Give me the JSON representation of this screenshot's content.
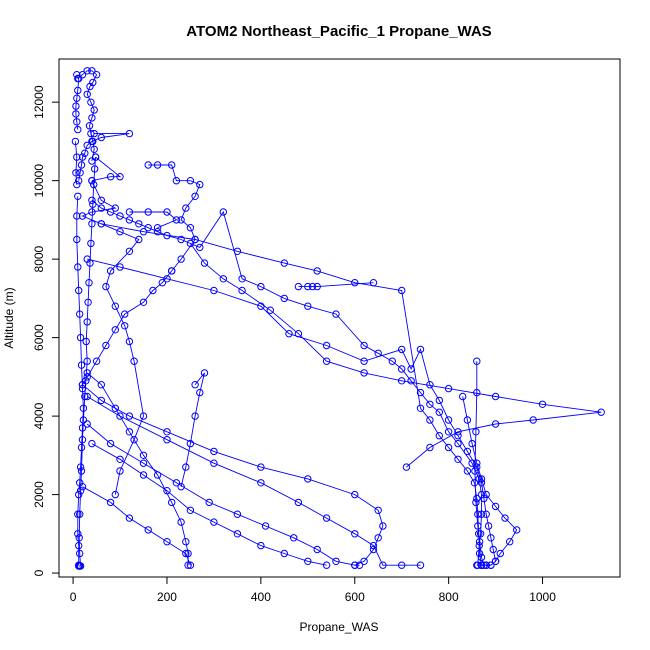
{
  "chart_data": {
    "type": "line",
    "title": "ATOM2 Northeast_Pacific_1 Propane_WAS",
    "xlabel": "Propane_WAS",
    "ylabel": "Altitude (m)",
    "xlim": [
      -30,
      1165
    ],
    "ylim": [
      -100,
      13100
    ],
    "xticks": [
      0,
      200,
      400,
      600,
      800,
      1000
    ],
    "yticks": [
      0,
      2000,
      4000,
      6000,
      8000,
      10000,
      12000
    ],
    "grid": false,
    "legend": "none",
    "color": "#0000ff",
    "marker": "open-circle",
    "profiles": [
      [
        [
          12,
          180
        ],
        [
          14,
          180
        ],
        [
          16,
          180
        ],
        [
          14,
          500
        ],
        [
          13,
          900
        ],
        [
          14,
          1500
        ],
        [
          16,
          2100
        ],
        [
          18,
          2600
        ],
        [
          20,
          3400
        ],
        [
          22,
          3900
        ],
        [
          25,
          4500
        ],
        [
          27,
          4900
        ],
        [
          30,
          5400
        ],
        [
          28,
          5900
        ],
        [
          30,
          6400
        ],
        [
          32,
          6900
        ],
        [
          34,
          7400
        ],
        [
          36,
          7900
        ],
        [
          38,
          8400
        ],
        [
          40,
          8900
        ],
        [
          42,
          9400
        ],
        [
          44,
          9900
        ],
        [
          46,
          10300
        ],
        [
          48,
          10600
        ]
      ],
      [
        [
          48,
          10600
        ],
        [
          100,
          10100
        ],
        [
          80,
          10100
        ],
        [
          40,
          10000
        ]
      ],
      [
        [
          40,
          10000
        ],
        [
          60,
          9500
        ],
        [
          90,
          9300
        ],
        [
          40,
          9200
        ],
        [
          20,
          9100
        ],
        [
          60,
          8900
        ],
        [
          100,
          8700
        ],
        [
          140,
          8500
        ],
        [
          120,
          8200
        ],
        [
          80,
          7700
        ],
        [
          70,
          7300
        ],
        [
          90,
          6800
        ],
        [
          110,
          6300
        ],
        [
          120,
          5900
        ],
        [
          130,
          5400
        ],
        [
          150,
          4000
        ],
        [
          130,
          3400
        ],
        [
          100,
          2600
        ],
        [
          90,
          2000
        ]
      ],
      [
        [
          45,
          11200
        ],
        [
          120,
          11200
        ],
        [
          60,
          11100
        ],
        [
          40,
          11000
        ],
        [
          30,
          10900
        ],
        [
          25,
          10700
        ],
        [
          20,
          10600
        ],
        [
          18,
          10400
        ],
        [
          15,
          10200
        ],
        [
          12,
          10000
        ]
      ],
      [
        [
          10,
          9600
        ],
        [
          8,
          9100
        ],
        [
          8,
          8500
        ],
        [
          10,
          7800
        ],
        [
          12,
          7200
        ],
        [
          14,
          6600
        ],
        [
          16,
          6000
        ],
        [
          18,
          5300
        ],
        [
          20,
          4700
        ],
        [
          22,
          4200
        ],
        [
          20,
          3700
        ],
        [
          18,
          3200
        ],
        [
          16,
          2700
        ],
        [
          14,
          2300
        ],
        [
          12,
          2000
        ],
        [
          10,
          1500
        ],
        [
          10,
          1000
        ],
        [
          12,
          700
        ],
        [
          12,
          200
        ]
      ],
      [
        [
          10,
          12600
        ],
        [
          20,
          12700
        ],
        [
          30,
          12800
        ],
        [
          40,
          12800
        ],
        [
          50,
          12700
        ],
        [
          42,
          12500
        ],
        [
          36,
          12400
        ],
        [
          30,
          12200
        ],
        [
          38,
          12000
        ],
        [
          45,
          11800
        ],
        [
          40,
          11600
        ],
        [
          35,
          11400
        ],
        [
          38,
          11200
        ],
        [
          42,
          11000
        ],
        [
          45,
          10800
        ],
        [
          40,
          10500
        ]
      ],
      [
        [
          8,
          12700
        ],
        [
          12,
          12600
        ],
        [
          10,
          12300
        ],
        [
          8,
          12100
        ],
        [
          6,
          11900
        ],
        [
          6,
          11700
        ],
        [
          8,
          11500
        ],
        [
          10,
          11300
        ]
      ],
      [
        [
          5,
          11000
        ],
        [
          8,
          10600
        ],
        [
          6,
          10200
        ],
        [
          8,
          9900
        ]
      ],
      [
        [
          160,
          10400
        ],
        [
          180,
          10400
        ],
        [
          210,
          10400
        ],
        [
          220,
          10000
        ],
        [
          250,
          10000
        ],
        [
          270,
          9900
        ],
        [
          260,
          9600
        ],
        [
          240,
          9300
        ],
        [
          230,
          9000
        ],
        [
          250,
          8800
        ],
        [
          260,
          8500
        ],
        [
          230,
          8000
        ],
        [
          210,
          7700
        ]
      ],
      [
        [
          210,
          7700
        ],
        [
          190,
          7400
        ],
        [
          170,
          7200
        ],
        [
          150,
          6900
        ],
        [
          110,
          6600
        ],
        [
          90,
          6200
        ],
        [
          70,
          5800
        ],
        [
          50,
          5400
        ],
        [
          30,
          5000
        ],
        [
          20,
          4800
        ]
      ],
      [
        [
          120,
          9200
        ],
        [
          160,
          9200
        ],
        [
          200,
          9200
        ],
        [
          220,
          9000
        ],
        [
          180,
          8800
        ]
      ],
      [
        [
          40,
          9500
        ],
        [
          60,
          9300
        ],
        [
          80,
          9200
        ],
        [
          100,
          9100
        ],
        [
          120,
          9000
        ],
        [
          140,
          8900
        ],
        [
          160,
          8800
        ],
        [
          180,
          8700
        ],
        [
          200,
          8600
        ],
        [
          230,
          8500
        ],
        [
          270,
          8300
        ],
        [
          320,
          9200
        ],
        [
          360,
          7500
        ],
        [
          400,
          7300
        ],
        [
          450,
          7000
        ],
        [
          500,
          6800
        ],
        [
          560,
          6600
        ],
        [
          620,
          5800
        ],
        [
          650,
          5600
        ],
        [
          680,
          5400
        ],
        [
          700,
          5200
        ],
        [
          720,
          4900
        ],
        [
          740,
          4600
        ],
        [
          760,
          4300
        ],
        [
          780,
          4100
        ],
        [
          800,
          3600
        ],
        [
          820,
          3300
        ],
        [
          850,
          2800
        ],
        [
          865,
          2400
        ],
        [
          870,
          2000
        ],
        [
          870,
          1500
        ],
        [
          868,
          1000
        ],
        [
          865,
          700
        ],
        [
          862,
          200
        ]
      ],
      [
        [
          60,
          8900
        ],
        [
          150,
          8700
        ],
        [
          260,
          8500
        ],
        [
          350,
          8200
        ],
        [
          450,
          7900
        ],
        [
          520,
          7700
        ],
        [
          600,
          7400
        ],
        [
          700,
          7200
        ],
        [
          740,
          4200
        ],
        [
          760,
          3900
        ],
        [
          780,
          3500
        ],
        [
          800,
          3200
        ],
        [
          820,
          2900
        ],
        [
          840,
          2600
        ],
        [
          855,
          2300
        ],
        [
          860,
          1900
        ],
        [
          862,
          1500
        ],
        [
          864,
          1000
        ],
        [
          866,
          500
        ],
        [
          870,
          200
        ]
      ],
      [
        [
          30,
          8000
        ],
        [
          100,
          7800
        ],
        [
          200,
          7500
        ],
        [
          300,
          7200
        ],
        [
          400,
          6800
        ],
        [
          460,
          6100
        ],
        [
          540,
          5800
        ],
        [
          620,
          5400
        ],
        [
          700,
          5700
        ],
        [
          720,
          5200
        ],
        [
          740,
          5700
        ],
        [
          760,
          4800
        ],
        [
          780,
          4400
        ],
        [
          800,
          3900
        ],
        [
          820,
          3500
        ],
        [
          840,
          3100
        ],
        [
          860,
          2700
        ],
        [
          870,
          2300
        ],
        [
          875,
          1900
        ],
        [
          880,
          1500
        ],
        [
          885,
          1200
        ],
        [
          890,
          900
        ],
        [
          895,
          600
        ],
        [
          900,
          300
        ],
        [
          890,
          200
        ],
        [
          880,
          200
        ],
        [
          870,
          200
        ]
      ],
      [
        [
          20,
          4800
        ],
        [
          60,
          4400
        ],
        [
          120,
          4000
        ],
        [
          200,
          3600
        ],
        [
          300,
          3100
        ],
        [
          400,
          2700
        ],
        [
          500,
          2400
        ],
        [
          600,
          2000
        ],
        [
          650,
          1600
        ],
        [
          660,
          1200
        ],
        [
          650,
          900
        ],
        [
          640,
          600
        ],
        [
          620,
          300
        ],
        [
          600,
          200
        ]
      ],
      [
        [
          30,
          4500
        ],
        [
          100,
          4000
        ],
        [
          200,
          3400
        ],
        [
          300,
          2800
        ],
        [
          400,
          2300
        ],
        [
          480,
          1800
        ],
        [
          540,
          1400
        ],
        [
          600,
          1000
        ],
        [
          640,
          700
        ],
        [
          660,
          200
        ],
        [
          700,
          200
        ],
        [
          740,
          200
        ]
      ],
      [
        [
          30,
          3800
        ],
        [
          80,
          3300
        ],
        [
          150,
          2800
        ],
        [
          220,
          2300
        ],
        [
          290,
          1800
        ],
        [
          350,
          1500
        ],
        [
          410,
          1200
        ],
        [
          470,
          900
        ],
        [
          520,
          600
        ],
        [
          560,
          300
        ],
        [
          600,
          200
        ],
        [
          610,
          200
        ]
      ],
      [
        [
          40,
          3300
        ],
        [
          100,
          2900
        ],
        [
          150,
          2500
        ],
        [
          200,
          2100
        ],
        [
          250,
          1600
        ],
        [
          300,
          1300
        ],
        [
          350,
          1000
        ],
        [
          400,
          700
        ],
        [
          450,
          500
        ],
        [
          500,
          300
        ],
        [
          540,
          200
        ]
      ],
      [
        [
          20,
          2200
        ],
        [
          80,
          1800
        ],
        [
          120,
          1400
        ],
        [
          160,
          1100
        ],
        [
          200,
          800
        ],
        [
          240,
          500
        ],
        [
          250,
          200
        ]
      ],
      [
        [
          30,
          5100
        ],
        [
          60,
          4800
        ],
        [
          90,
          4200
        ],
        [
          120,
          3600
        ],
        [
          150,
          3000
        ],
        [
          180,
          2500
        ],
        [
          210,
          1800
        ],
        [
          230,
          1300
        ],
        [
          240,
          800
        ],
        [
          245,
          500
        ],
        [
          245,
          200
        ]
      ],
      [
        [
          260,
          4800
        ],
        [
          280,
          5100
        ],
        [
          270,
          4600
        ],
        [
          260,
          4000
        ],
        [
          250,
          3300
        ],
        [
          240,
          2700
        ],
        [
          230,
          2200
        ]
      ],
      [
        [
          710,
          2700
        ],
        [
          760,
          3200
        ],
        [
          820,
          3600
        ],
        [
          900,
          3800
        ],
        [
          980,
          3900
        ],
        [
          1125,
          4100
        ],
        [
          1000,
          4300
        ],
        [
          900,
          4500
        ],
        [
          800,
          4700
        ],
        [
          700,
          4900
        ],
        [
          620,
          5100
        ],
        [
          540,
          5400
        ],
        [
          480,
          6100
        ],
        [
          420,
          6700
        ],
        [
          360,
          7200
        ],
        [
          320,
          7500
        ],
        [
          280,
          7900
        ],
        [
          250,
          8400
        ]
      ],
      [
        [
          860,
          200
        ],
        [
          870,
          200
        ],
        [
          880,
          200
        ],
        [
          890,
          200
        ],
        [
          900,
          300
        ],
        [
          910,
          500
        ],
        [
          930,
          800
        ],
        [
          945,
          1100
        ],
        [
          920,
          1400
        ],
        [
          900,
          1700
        ],
        [
          880,
          2000
        ],
        [
          870,
          2400
        ],
        [
          860,
          2800
        ],
        [
          850,
          3300
        ],
        [
          840,
          3900
        ],
        [
          830,
          4500
        ]
      ],
      [
        [
          860,
          5400
        ],
        [
          860,
          4600
        ],
        [
          858,
          3600
        ],
        [
          856,
          2600
        ],
        [
          858,
          1800
        ],
        [
          862,
          1200
        ],
        [
          866,
          800
        ],
        [
          870,
          400
        ],
        [
          875,
          200
        ]
      ],
      [
        [
          480,
          7300
        ],
        [
          500,
          7300
        ],
        [
          510,
          7300
        ],
        [
          520,
          7300
        ],
        [
          640,
          7400
        ]
      ]
    ]
  }
}
